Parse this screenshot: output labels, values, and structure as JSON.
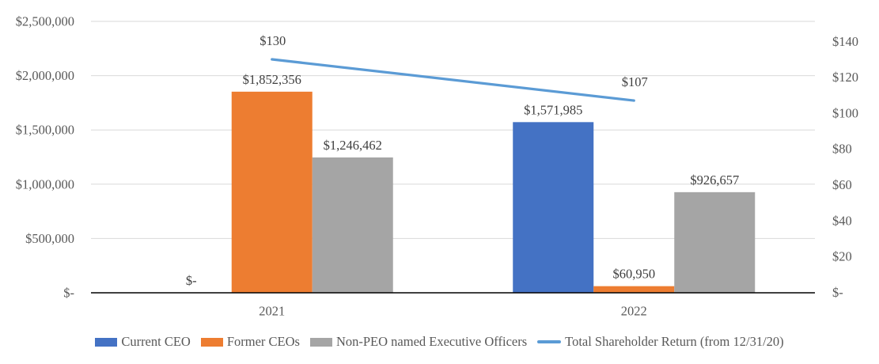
{
  "chart_data": {
    "type": "combo-bar-line",
    "title": "",
    "categories": [
      "2021",
      "2022"
    ],
    "series": [
      {
        "name": "Current CEO",
        "chart": "bar",
        "color": "#4472C4",
        "axis": "left",
        "values": [
          0,
          1571985
        ],
        "data_labels": [
          "$-",
          "$1,571,985"
        ]
      },
      {
        "name": "Former CEOs",
        "chart": "bar",
        "color": "#ED7D31",
        "axis": "left",
        "values": [
          1852356,
          60950
        ],
        "data_labels": [
          "$1,852,356",
          "$60,950"
        ]
      },
      {
        "name": "Non-PEO named Executive Officers",
        "chart": "bar",
        "color": "#A5A5A5",
        "axis": "left",
        "values": [
          1246462,
          926657
        ],
        "data_labels": [
          "$1,246,462",
          "$926,657"
        ]
      },
      {
        "name": "Total Shareholder Return (from 12/31/20)",
        "chart": "line",
        "color": "#5B9BD5",
        "axis": "right",
        "values": [
          130,
          107
        ],
        "data_labels": [
          "$130",
          "$107"
        ]
      }
    ],
    "left_axis": {
      "min": 0,
      "max": 2500000,
      "tick_values": [
        0,
        500000,
        1000000,
        1500000,
        2000000,
        2500000
      ],
      "tick_labels": [
        "$-",
        "$500,000",
        "$1,000,000",
        "$1,500,000",
        "$2,000,000",
        "$2,500,000"
      ]
    },
    "right_axis": {
      "min": 0,
      "max": 140,
      "tick_values": [
        0,
        20,
        40,
        60,
        80,
        100,
        120,
        140
      ],
      "tick_labels": [
        "$-",
        "$20",
        "$40",
        "$60",
        "$80",
        "$100",
        "$120",
        "$140"
      ]
    },
    "grid": true,
    "legend_position": "bottom",
    "style": {
      "grid_color": "#D9D9D9",
      "axis_line_color": "#000000",
      "tick_text_color": "#595959",
      "data_label_color": "#3F3F3F"
    }
  }
}
